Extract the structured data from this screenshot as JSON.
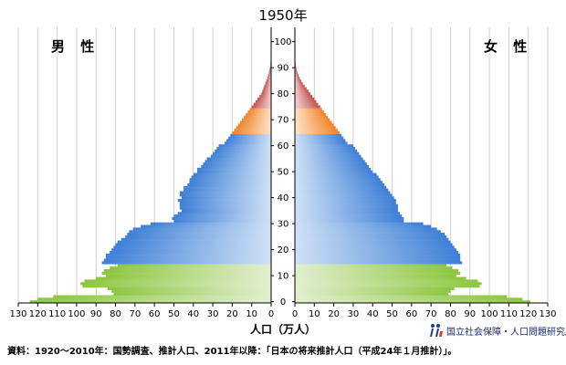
{
  "chart_data": {
    "type": "bar",
    "subtype": "population-pyramid",
    "title": "1950年",
    "left_label": "男 性",
    "right_label": "女 性",
    "xlabel": "人口（万人）",
    "xlim": [
      0,
      130
    ],
    "x_ticks": [
      130,
      120,
      110,
      100,
      90,
      80,
      70,
      60,
      50,
      40,
      30,
      20,
      10,
      0,
      10,
      20,
      30,
      40,
      50,
      60,
      70,
      80,
      90,
      100,
      110,
      120,
      130
    ],
    "age_ticks": [
      0,
      10,
      20,
      30,
      40,
      50,
      60,
      70,
      80,
      90,
      100
    ],
    "age_range": [
      0,
      105
    ],
    "grid": true,
    "age_bands": [
      {
        "from": 0,
        "to": 14,
        "color": "#8cc63f",
        "color_light": "#e2efd0"
      },
      {
        "from": 15,
        "to": 64,
        "color": "#3d7fd6",
        "color_light": "#cfe1f6"
      },
      {
        "from": 65,
        "to": 74,
        "color": "#f08228",
        "color_light": "#fde4c8"
      },
      {
        "from": 75,
        "to": 105,
        "color": "#c0504d",
        "color_light": "#f3d3d2"
      }
    ],
    "series": [
      {
        "name": "男性",
        "values": [
          124,
          120,
          112,
          81,
          82,
          84,
          97,
          98,
          96,
          90,
          85,
          87,
          86,
          83,
          79,
          87,
          86,
          85,
          85,
          83,
          82,
          81,
          80,
          79,
          77,
          75,
          74,
          73,
          71,
          67,
          62,
          50,
          51,
          50,
          48,
          46,
          47,
          47,
          47,
          48,
          46,
          47,
          47,
          45,
          45,
          43,
          42,
          42,
          41,
          40,
          38,
          38,
          36,
          35,
          34,
          33,
          31,
          30,
          29,
          28,
          27,
          24,
          23,
          22,
          21,
          20,
          19,
          18,
          17,
          16,
          15,
          14,
          13,
          12,
          11,
          10,
          9,
          8,
          7,
          6,
          5,
          4.5,
          4,
          3.5,
          3,
          2.5,
          2,
          1.6,
          1.2,
          0.9,
          0.6,
          0.4,
          0.3,
          0.2,
          0.15,
          0.1,
          0.05,
          0,
          0,
          0,
          0,
          0,
          0,
          0,
          0,
          0
        ]
      },
      {
        "name": "女性",
        "values": [
          121,
          117,
          109,
          79,
          80,
          82,
          95,
          96,
          94,
          88,
          83,
          85,
          84,
          81,
          78,
          86,
          85,
          85,
          85,
          84,
          83,
          82,
          81,
          80,
          79,
          78,
          77,
          75,
          73,
          70,
          66,
          56,
          56,
          55,
          54,
          53,
          53,
          53,
          52,
          52,
          51,
          50,
          49,
          48,
          47,
          46,
          45,
          44,
          43,
          42,
          40,
          39,
          38,
          37,
          36,
          35,
          34,
          33,
          32,
          31,
          30,
          27,
          26,
          25,
          24,
          23,
          22,
          21,
          20,
          19,
          18,
          17,
          16,
          15,
          14,
          13,
          12,
          11,
          10,
          9,
          8,
          7,
          6,
          5,
          4,
          3.2,
          2.5,
          1.9,
          1.4,
          1,
          0.7,
          0.5,
          0.35,
          0.25,
          0.15,
          0.1,
          0.05,
          0,
          0,
          0,
          0,
          0,
          0,
          0,
          0,
          0
        ]
      }
    ]
  },
  "source_note": "資料：1920〜2010年：国勢調査、推計人口、2011年以降：「日本の将来推計人口（平成24年１月推計）」。",
  "logo": {
    "text": "国立社会保障・人口問題研究所",
    "mark_color": "#1a3a8c"
  }
}
